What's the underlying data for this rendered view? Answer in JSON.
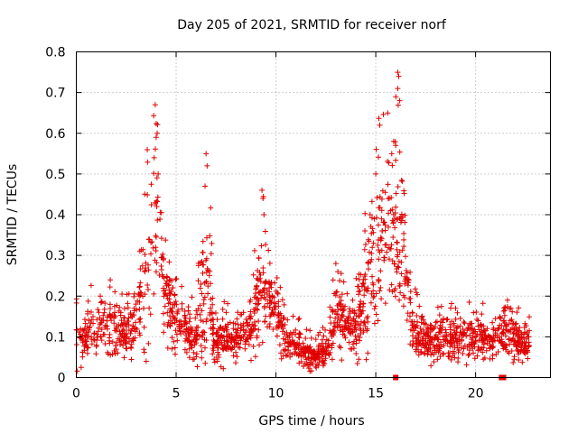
{
  "chart_data": {
    "type": "scatter",
    "title": "Day 205 of 2021, SRMTID for receiver norf",
    "xlabel": "GPS time / hours",
    "ylabel": "SRMTID / TECUs",
    "xlim": [
      0,
      23.75
    ],
    "ylim": [
      0,
      0.8
    ],
    "x_ticks": [
      0,
      5,
      10,
      15,
      20
    ],
    "x_tick_labels": [
      "0",
      "5",
      "10",
      "15",
      "20"
    ],
    "y_ticks": [
      0,
      0.1,
      0.2,
      0.3,
      0.4,
      0.5,
      0.6,
      0.7,
      0.8
    ],
    "y_tick_labels": [
      "0",
      "0.1",
      "0.2",
      "0.3",
      "0.4",
      "0.5",
      "0.6",
      "0.7",
      "0.8"
    ],
    "grid": true,
    "marker": "+",
    "color": "#e00000",
    "series": [
      {
        "name": "SRMTID",
        "envelope": [
          [
            0.0,
            0.09,
            0.05
          ],
          [
            0.5,
            0.11,
            0.05
          ],
          [
            1.0,
            0.12,
            0.05
          ],
          [
            1.5,
            0.12,
            0.05
          ],
          [
            2.0,
            0.11,
            0.05
          ],
          [
            2.5,
            0.11,
            0.04
          ],
          [
            3.0,
            0.14,
            0.06
          ],
          [
            3.4,
            0.22,
            0.1
          ],
          [
            3.7,
            0.32,
            0.14
          ],
          [
            4.0,
            0.4,
            0.16
          ],
          [
            4.3,
            0.25,
            0.1
          ],
          [
            4.6,
            0.17,
            0.07
          ],
          [
            5.0,
            0.13,
            0.05
          ],
          [
            5.5,
            0.11,
            0.04
          ],
          [
            6.0,
            0.1,
            0.04
          ],
          [
            6.4,
            0.2,
            0.12
          ],
          [
            6.6,
            0.28,
            0.16
          ],
          [
            6.9,
            0.08,
            0.04
          ],
          [
            7.5,
            0.1,
            0.04
          ],
          [
            8.0,
            0.09,
            0.04
          ],
          [
            8.5,
            0.1,
            0.04
          ],
          [
            9.0,
            0.17,
            0.07
          ],
          [
            9.3,
            0.25,
            0.1
          ],
          [
            9.6,
            0.2,
            0.05
          ],
          [
            10.0,
            0.16,
            0.05
          ],
          [
            10.5,
            0.09,
            0.04
          ],
          [
            11.0,
            0.08,
            0.03
          ],
          [
            11.5,
            0.06,
            0.03
          ],
          [
            12.0,
            0.05,
            0.02
          ],
          [
            12.5,
            0.07,
            0.03
          ],
          [
            13.0,
            0.14,
            0.06
          ],
          [
            13.5,
            0.13,
            0.05
          ],
          [
            14.0,
            0.12,
            0.05
          ],
          [
            14.5,
            0.2,
            0.1
          ],
          [
            15.0,
            0.3,
            0.14
          ],
          [
            15.5,
            0.33,
            0.16
          ],
          [
            16.0,
            0.38,
            0.18
          ],
          [
            16.4,
            0.3,
            0.13
          ],
          [
            16.8,
            0.12,
            0.05
          ],
          [
            17.5,
            0.09,
            0.04
          ],
          [
            18.0,
            0.09,
            0.04
          ],
          [
            18.5,
            0.09,
            0.04
          ],
          [
            19.0,
            0.1,
            0.04
          ],
          [
            19.5,
            0.1,
            0.04
          ],
          [
            20.0,
            0.1,
            0.04
          ],
          [
            20.5,
            0.09,
            0.04
          ],
          [
            21.0,
            0.08,
            0.03
          ],
          [
            21.5,
            0.12,
            0.05
          ],
          [
            22.0,
            0.09,
            0.04
          ],
          [
            22.7,
            0.08,
            0.03
          ]
        ],
        "peaks": [
          [
            4.0,
            0.59
          ],
          [
            4.05,
            0.6
          ],
          [
            3.9,
            0.54
          ],
          [
            4.1,
            0.5
          ],
          [
            6.5,
            0.55
          ],
          [
            6.55,
            0.52
          ],
          [
            6.45,
            0.47
          ],
          [
            9.3,
            0.46
          ],
          [
            9.35,
            0.44
          ],
          [
            9.4,
            0.4
          ],
          [
            15.2,
            0.62
          ],
          [
            15.6,
            0.65
          ],
          [
            16.1,
            0.75
          ],
          [
            16.15,
            0.74
          ],
          [
            16.1,
            0.71
          ],
          [
            16.2,
            0.68
          ],
          [
            15.9,
            0.58
          ],
          [
            16.0,
            0.57
          ],
          [
            15.0,
            0.5
          ],
          [
            15.8,
            0.55
          ],
          [
            13.0,
            0.28
          ],
          [
            13.1,
            0.26
          ],
          [
            1.7,
            0.24
          ],
          [
            1.2,
            0.2
          ],
          [
            19.0,
            0.17
          ],
          [
            21.6,
            0.19
          ],
          [
            14.6,
            0.06
          ],
          [
            3.5,
            0.04
          ]
        ],
        "base_markers": [
          [
            16.0,
            0.0
          ],
          [
            21.3,
            0.0
          ],
          [
            21.4,
            0.0
          ]
        ]
      }
    ]
  }
}
